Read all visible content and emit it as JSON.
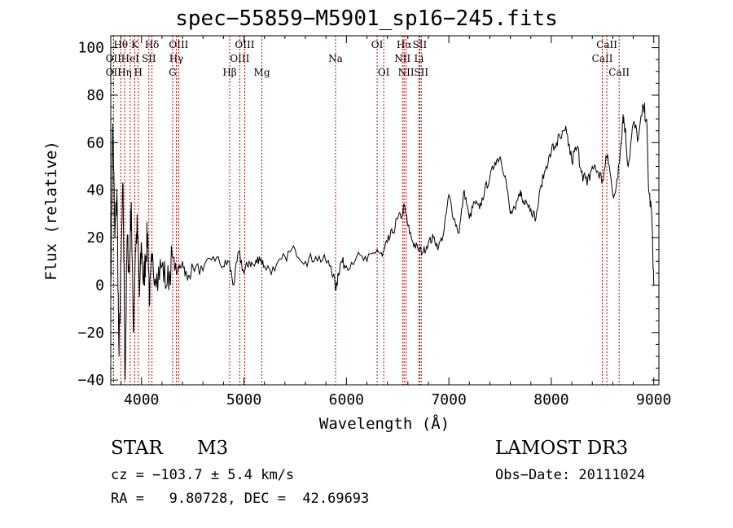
{
  "chart_data": {
    "type": "line",
    "title": "spec−55859−M5901_sp16−245.fits",
    "xlabel": "Wavelength (Å)",
    "ylabel": "Flux (relative)",
    "xlim": [
      3700,
      9050
    ],
    "ylim": [
      -42,
      105
    ],
    "xticks": [
      4000,
      5000,
      6000,
      7000,
      8000,
      9000
    ],
    "xtick_labels": [
      "4000",
      "5000",
      "6000",
      "7000",
      "8000",
      "9000"
    ],
    "yticks": [
      -40,
      -20,
      0,
      20,
      40,
      60,
      80,
      100
    ],
    "ytick_labels": [
      "−40",
      "−20",
      "0",
      "20",
      "40",
      "60",
      "80",
      "100"
    ],
    "grid": false,
    "series": [
      {
        "name": "flux",
        "x": [
          3700,
          3720,
          3740,
          3760,
          3780,
          3800,
          3820,
          3840,
          3860,
          3880,
          3900,
          3920,
          3940,
          3960,
          3980,
          4000,
          4020,
          4040,
          4060,
          4080,
          4100,
          4150,
          4200,
          4250,
          4300,
          4350,
          4400,
          4450,
          4500,
          4600,
          4700,
          4800,
          4850,
          4900,
          4950,
          5000,
          5050,
          5100,
          5150,
          5200,
          5300,
          5400,
          5500,
          5600,
          5700,
          5800,
          5850,
          5900,
          5920,
          5950,
          6000,
          6100,
          6200,
          6300,
          6350,
          6400,
          6450,
          6500,
          6550,
          6563,
          6600,
          6650,
          6700,
          6750,
          6800,
          6850,
          6900,
          6950,
          7000,
          7050,
          7100,
          7150,
          7200,
          7250,
          7300,
          7350,
          7400,
          7450,
          7500,
          7550,
          7600,
          7650,
          7700,
          7720,
          7750,
          7800,
          7850,
          7900,
          7950,
          8000,
          8050,
          8100,
          8150,
          8200,
          8250,
          8300,
          8350,
          8400,
          8450,
          8500,
          8550,
          8600,
          8650,
          8680,
          8700,
          8720,
          8750,
          8800,
          8850,
          8900,
          8930,
          8950,
          8980,
          9000
        ],
        "y": [
          0,
          68,
          20,
          40,
          -30,
          10,
          42,
          -40,
          20,
          5,
          35,
          -20,
          15,
          25,
          -5,
          18,
          0,
          12,
          22,
          -8,
          10,
          5,
          8,
          0,
          12,
          5,
          10,
          2,
          8,
          6,
          12,
          8,
          10,
          0,
          14,
          5,
          10,
          8,
          12,
          8,
          6,
          12,
          15,
          10,
          12,
          10,
          8,
          -2,
          5,
          10,
          8,
          12,
          10,
          15,
          12,
          18,
          22,
          28,
          30,
          34,
          25,
          18,
          15,
          14,
          18,
          20,
          16,
          22,
          38,
          28,
          22,
          40,
          28,
          35,
          32,
          40,
          45,
          52,
          54,
          46,
          30,
          32,
          40,
          35,
          36,
          32,
          28,
          42,
          50,
          56,
          60,
          62,
          64,
          52,
          58,
          48,
          42,
          50,
          48,
          44,
          55,
          38,
          45,
          60,
          72,
          66,
          50,
          68,
          62,
          75,
          70,
          40,
          30,
          0
        ]
      }
    ],
    "lines": [
      {
        "label": "OII",
        "x": 3727,
        "row": 2
      },
      {
        "label": "OII",
        "x": 3727,
        "row": 3
      },
      {
        "label": "Hθ",
        "x": 3798,
        "row": 1
      },
      {
        "label": "Hη",
        "x": 3835,
        "row": 3
      },
      {
        "label": "HeI",
        "x": 3889,
        "row": 2
      },
      {
        "label": "K",
        "x": 3934,
        "row": 1
      },
      {
        "label": "H",
        "x": 3968,
        "row": 3
      },
      {
        "label": "SII",
        "x": 4072,
        "row": 2
      },
      {
        "label": "Hδ",
        "x": 4102,
        "row": 1
      },
      {
        "label": "G",
        "x": 4304,
        "row": 3
      },
      {
        "label": "OIII",
        "x": 4363,
        "row": 1
      },
      {
        "label": "Hγ",
        "x": 4340,
        "row": 2
      },
      {
        "label": "Hβ",
        "x": 4861,
        "row": 3
      },
      {
        "label": "OIII",
        "x": 4959,
        "row": 2
      },
      {
        "label": "OIII",
        "x": 5007,
        "row": 1
      },
      {
        "label": "Mg",
        "x": 5175,
        "row": 3
      },
      {
        "label": "Na",
        "x": 5894,
        "row": 2
      },
      {
        "label": "OI",
        "x": 6300,
        "row": 1
      },
      {
        "label": "OI",
        "x": 6364,
        "row": 3
      },
      {
        "label": "NII",
        "x": 6548,
        "row": 2
      },
      {
        "label": "Hα",
        "x": 6563,
        "row": 1
      },
      {
        "label": "NII",
        "x": 6583,
        "row": 3
      },
      {
        "label": "Li",
        "x": 6708,
        "row": 2
      },
      {
        "label": "SII",
        "x": 6716,
        "row": 1
      },
      {
        "label": "SII",
        "x": 6731,
        "row": 3
      },
      {
        "label": "CaII",
        "x": 8498,
        "row": 2
      },
      {
        "label": "CaII",
        "x": 8542,
        "row": 1
      },
      {
        "label": "CaII",
        "x": 8662,
        "row": 3
      }
    ]
  },
  "info": {
    "object_type": "STAR",
    "subclass": "M3",
    "survey": "LAMOST DR3",
    "cz": "cz = −103.7 ± 5.4 km/s",
    "obs_date": "Obs−Date: 20111024",
    "coords": "RA =   9.80728, DEC =  42.69693"
  },
  "colors": {
    "spectrum": "#000000",
    "marker_lines": "#cc0000",
    "axes": "#000000"
  }
}
